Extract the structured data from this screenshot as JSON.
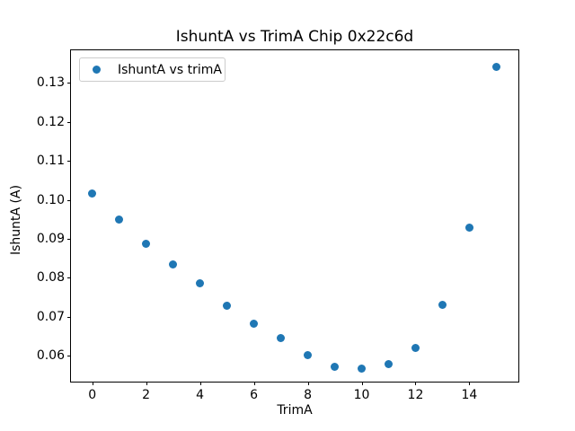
{
  "figure": {
    "background": "#ffffff"
  },
  "chart_data": {
    "type": "scatter",
    "title": "IshuntA vs TrimA Chip 0x22c6d",
    "xlabel": "TrimA",
    "ylabel": "IshuntA (A)",
    "legend": {
      "label": "IshuntA vs trimA",
      "position": "upper left"
    },
    "marker_color": "#1f77b4",
    "axis_color": "#000000",
    "legend_border_color": "#cccccc",
    "grid": false,
    "x": [
      0,
      1,
      2,
      3,
      4,
      5,
      6,
      7,
      8,
      9,
      10,
      11,
      12,
      13,
      14,
      15
    ],
    "y": [
      0.1016,
      0.095,
      0.0888,
      0.0833,
      0.0785,
      0.0728,
      0.0681,
      0.0646,
      0.06,
      0.057,
      0.0567,
      0.0578,
      0.062,
      0.0731,
      0.0929,
      0.1341
    ],
    "xlim": [
      -0.79,
      15.82
    ],
    "ylim": [
      0.0533,
      0.1384
    ],
    "xticks": [
      0,
      2,
      4,
      6,
      8,
      10,
      12,
      14
    ],
    "xtick_labels": [
      "0",
      "2",
      "4",
      "6",
      "8",
      "10",
      "12",
      "14"
    ],
    "yticks": [
      0.06,
      0.07,
      0.08,
      0.09,
      0.1,
      0.11,
      0.12,
      0.13
    ],
    "ytick_labels": [
      "0.06",
      "0.07",
      "0.08",
      "0.09",
      "0.10",
      "0.11",
      "0.12",
      "0.13"
    ]
  }
}
